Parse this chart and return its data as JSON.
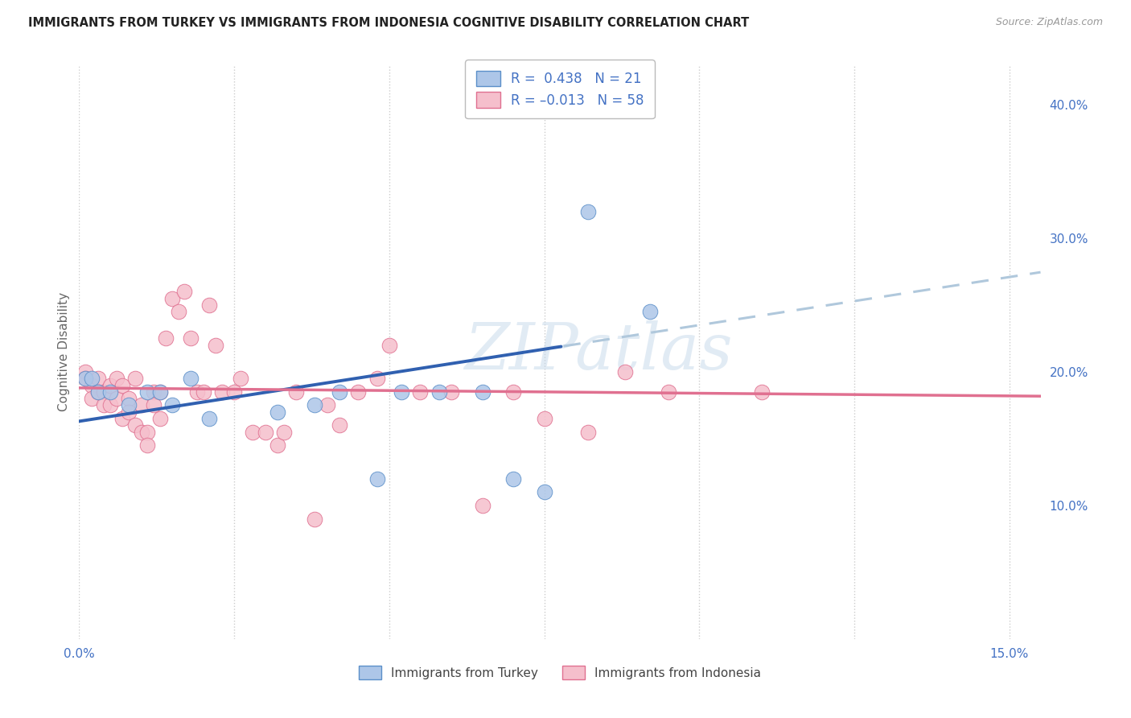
{
  "title": "IMMIGRANTS FROM TURKEY VS IMMIGRANTS FROM INDONESIA COGNITIVE DISABILITY CORRELATION CHART",
  "source": "Source: ZipAtlas.com",
  "ylabel": "Cognitive Disability",
  "xlim": [
    0.0,
    0.155
  ],
  "ylim": [
    0.0,
    0.43
  ],
  "R_turkey": 0.438,
  "N_turkey": 21,
  "R_indonesia": -0.013,
  "N_indonesia": 58,
  "turkey_color": "#adc6e8",
  "turkey_edge_color": "#5b8fc9",
  "turkey_line_color": "#3060b0",
  "indonesia_color": "#f5bfcc",
  "indonesia_edge_color": "#e07090",
  "indonesia_line_color": "#e07090",
  "trend_ext_color": "#b0c8dc",
  "watermark_text": "ZIPatlas",
  "background_color": "#ffffff",
  "grid_color": "#cccccc",
  "axis_label_color": "#4472c4",
  "title_color": "#222222",
  "source_color": "#999999",
  "turkey_x": [
    0.001,
    0.002,
    0.003,
    0.005,
    0.008,
    0.011,
    0.013,
    0.015,
    0.018,
    0.021,
    0.032,
    0.038,
    0.042,
    0.048,
    0.052,
    0.058,
    0.065,
    0.07,
    0.075,
    0.082,
    0.092
  ],
  "turkey_y": [
    0.195,
    0.195,
    0.185,
    0.185,
    0.175,
    0.185,
    0.185,
    0.175,
    0.195,
    0.165,
    0.17,
    0.175,
    0.185,
    0.12,
    0.185,
    0.185,
    0.185,
    0.12,
    0.11,
    0.32,
    0.245
  ],
  "indonesia_x": [
    0.001,
    0.001,
    0.002,
    0.002,
    0.003,
    0.003,
    0.004,
    0.004,
    0.005,
    0.005,
    0.006,
    0.006,
    0.007,
    0.007,
    0.008,
    0.008,
    0.009,
    0.009,
    0.01,
    0.01,
    0.011,
    0.011,
    0.012,
    0.012,
    0.013,
    0.013,
    0.014,
    0.015,
    0.016,
    0.017,
    0.018,
    0.019,
    0.02,
    0.021,
    0.022,
    0.023,
    0.025,
    0.026,
    0.028,
    0.03,
    0.032,
    0.033,
    0.035,
    0.038,
    0.04,
    0.042,
    0.045,
    0.048,
    0.05,
    0.055,
    0.06,
    0.065,
    0.07,
    0.075,
    0.082,
    0.088,
    0.095,
    0.11
  ],
  "indonesia_y": [
    0.2,
    0.195,
    0.19,
    0.18,
    0.195,
    0.185,
    0.185,
    0.175,
    0.19,
    0.175,
    0.195,
    0.18,
    0.19,
    0.165,
    0.18,
    0.17,
    0.195,
    0.16,
    0.175,
    0.155,
    0.155,
    0.145,
    0.185,
    0.175,
    0.185,
    0.165,
    0.225,
    0.255,
    0.245,
    0.26,
    0.225,
    0.185,
    0.185,
    0.25,
    0.22,
    0.185,
    0.185,
    0.195,
    0.155,
    0.155,
    0.145,
    0.155,
    0.185,
    0.09,
    0.175,
    0.16,
    0.185,
    0.195,
    0.22,
    0.185,
    0.185,
    0.1,
    0.185,
    0.165,
    0.155,
    0.2,
    0.185,
    0.185
  ]
}
